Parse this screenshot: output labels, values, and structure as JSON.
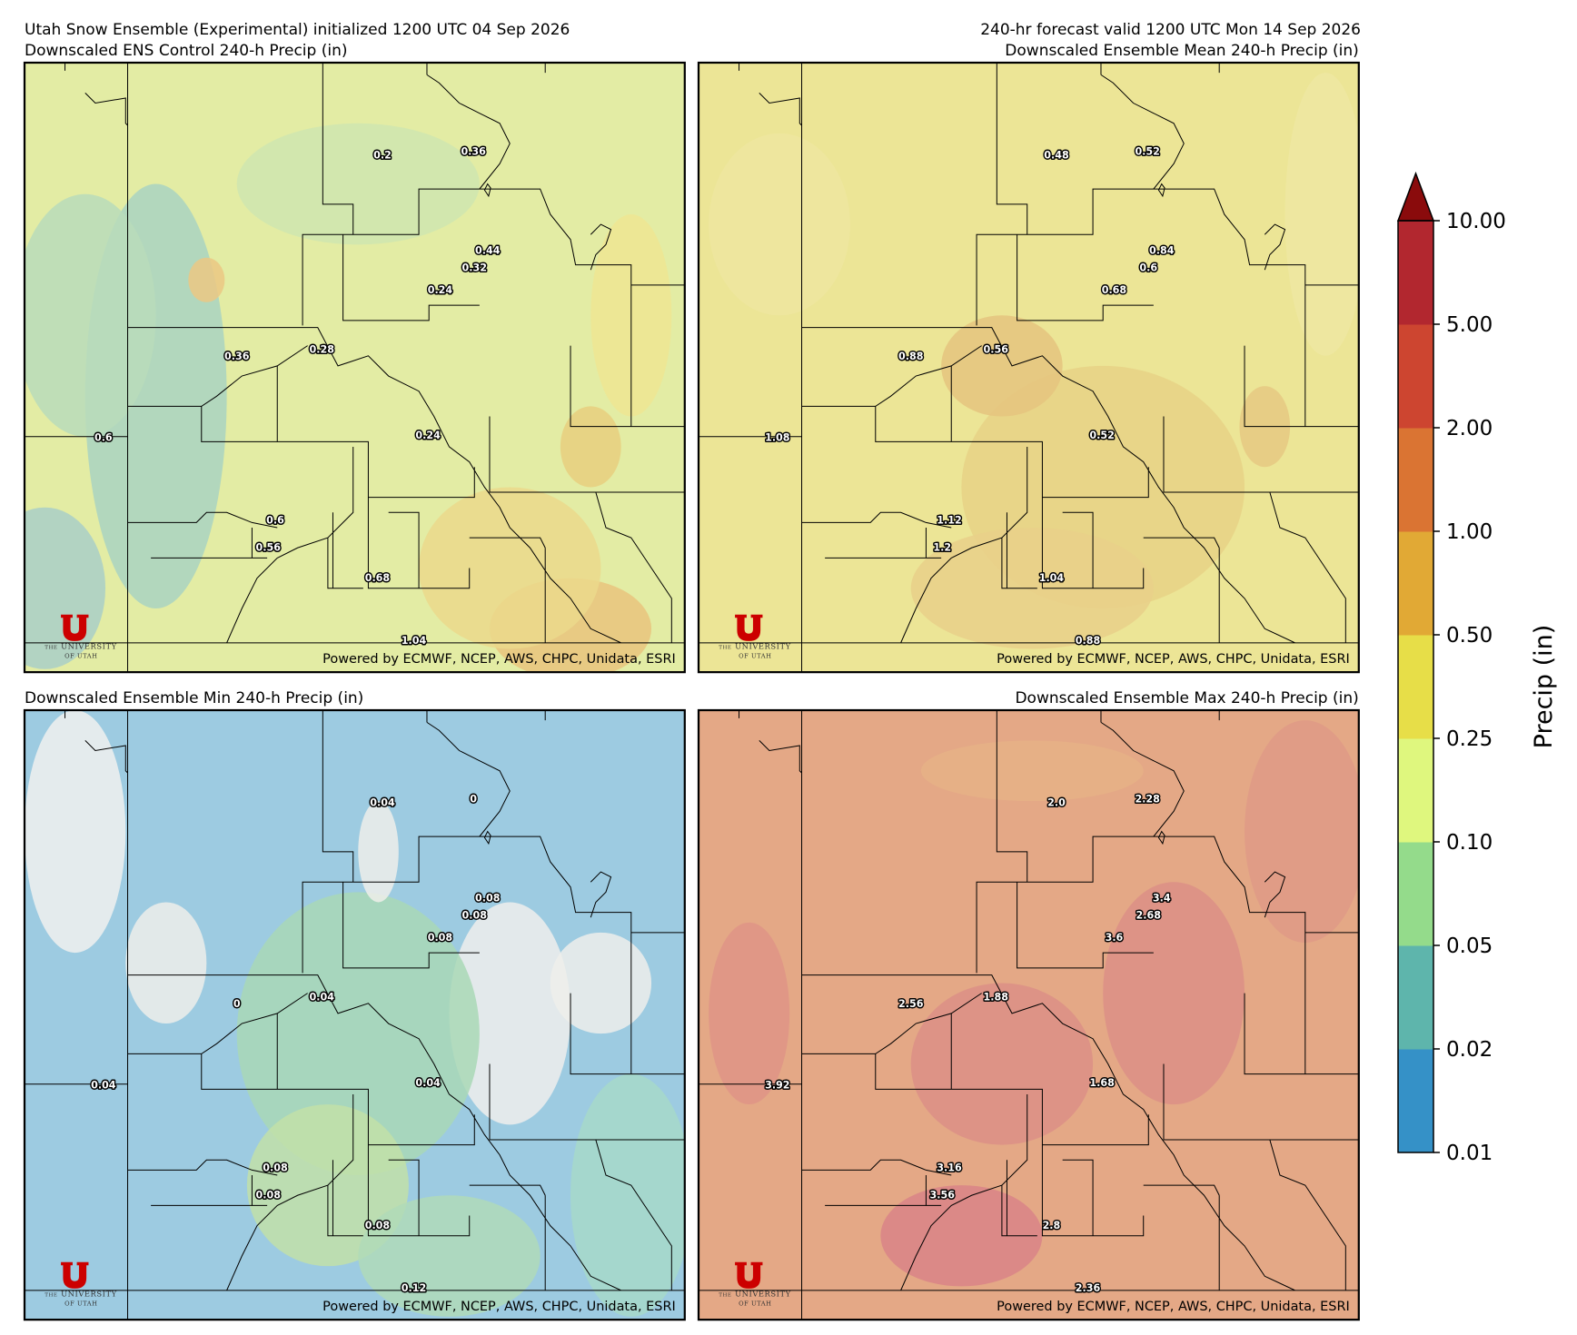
{
  "header": {
    "init": "Utah Snow Ensemble (Experimental) initialized 1200 UTC 04 Sep 2026",
    "valid": "240-hr forecast valid 1200 UTC Mon 14 Sep 2026"
  },
  "panels": [
    {
      "title": "Downscaled ENS Control 240-h Precip (in)",
      "points": [
        "0.2",
        "0.36",
        "0.44",
        "0.32",
        "0.24",
        "0.36",
        "0.28",
        "0.6",
        "0.24",
        "0.6",
        "0.56",
        "0.68",
        "1.04"
      ]
    },
    {
      "title": "Downscaled Ensemble Mean 240-h Precip (in)",
      "points": [
        "0.48",
        "0.52",
        "0.84",
        "0.6",
        "0.68",
        "0.88",
        "0.56",
        "1.08",
        "0.52",
        "1.12",
        "1.2",
        "1.04",
        "0.88"
      ]
    },
    {
      "title": "Downscaled Ensemble Min 240-h Precip (in)",
      "points": [
        "0.04",
        "0",
        "0.08",
        "0.08",
        "0.08",
        "0",
        "0.04",
        "0.04",
        "0.04",
        "0.08",
        "0.08",
        "0.08",
        "0.12"
      ]
    },
    {
      "title": "Downscaled Ensemble Max 240-h Precip (in)",
      "points": [
        "2.0",
        "2.28",
        "3.4",
        "2.68",
        "3.6",
        "2.56",
        "1.88",
        "3.92",
        "1.68",
        "3.16",
        "3.56",
        "2.8",
        "2.36"
      ]
    }
  ],
  "credit": "Powered by ECMWF, NCEP, AWS, CHPC, Unidata, ESRI",
  "logo": {
    "the": "THE",
    "name": "UNIVERSITY",
    "of": "OF UTAH"
  },
  "colorbar": {
    "label": "Precip (in)",
    "ticks": [
      "0.01",
      "0.02",
      "0.05",
      "0.10",
      "0.25",
      "0.50",
      "1.00",
      "2.00",
      "5.00",
      "10.00"
    ],
    "colors": [
      "#3591c7",
      "#5eb5ac",
      "#94db8b",
      "#dff77e",
      "#e7de48",
      "#e1a935",
      "#da7433",
      "#cd4530",
      "#b2272f"
    ],
    "extend_color": "#8a0b0c"
  }
}
